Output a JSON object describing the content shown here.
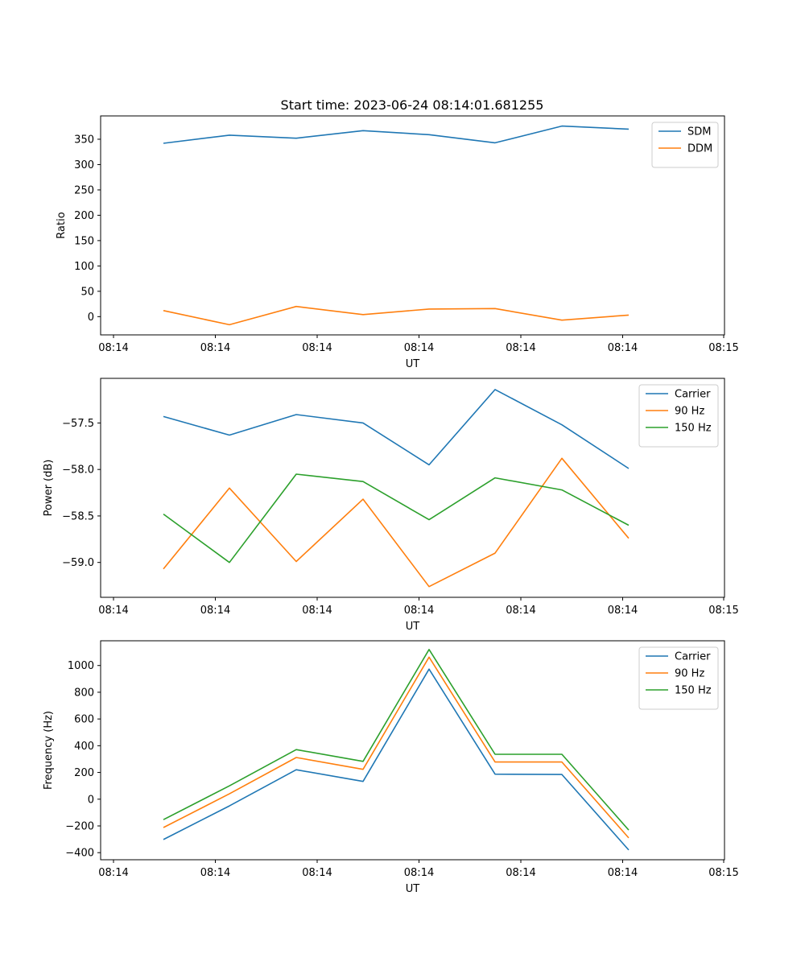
{
  "figure_title": "Start time: 2023-06-24 08:14:01.681255",
  "colors": {
    "blue": "#1f77b4",
    "orange": "#ff7f0e",
    "green": "#2ca02c"
  },
  "chart_data": [
    {
      "type": "line",
      "title": "Start time: 2023-06-24 08:14:01.681255",
      "xlabel": "UT",
      "ylabel": "Ratio",
      "x_tick_labels": [
        "08:14",
        "08:14",
        "08:14",
        "08:14",
        "08:14",
        "08:14",
        "08:14"
      ],
      "y_ticks": [
        0,
        50,
        100,
        150,
        200,
        250,
        300,
        350
      ],
      "y_tick_labels": [
        "0",
        "50",
        "100",
        "150",
        "200",
        "250",
        "300",
        "350"
      ],
      "ylim": [
        -36,
        396
      ],
      "grid": false,
      "legend_position": "top-right",
      "series": [
        {
          "name": "SDM",
          "color": "#1f77b4",
          "values": [
            342,
            358,
            352,
            367,
            359,
            343,
            376,
            370
          ]
        },
        {
          "name": "DDM",
          "color": "#ff7f0e",
          "values": [
            12,
            -16,
            20,
            4,
            15,
            16,
            -7,
            3
          ]
        }
      ]
    },
    {
      "type": "line",
      "xlabel": "UT",
      "ylabel": "Power (dB)",
      "x_tick_labels": [
        "08:14",
        "08:14",
        "08:14",
        "08:14",
        "08:14",
        "08:14",
        "08:14"
      ],
      "y_ticks": [
        -59.0,
        -58.5,
        -58.0,
        -57.5
      ],
      "y_tick_labels": [
        "−59.0",
        "−58.5",
        "−58.0",
        "−57.5"
      ],
      "ylim": [
        -59.375,
        -57.02
      ],
      "grid": false,
      "legend_position": "top-right",
      "series": [
        {
          "name": "Carrier",
          "color": "#1f77b4",
          "values": [
            -57.43,
            -57.63,
            -57.41,
            -57.5,
            -57.95,
            -57.14,
            -57.52,
            -57.99
          ]
        },
        {
          "name": "90 Hz",
          "color": "#ff7f0e",
          "values": [
            -59.07,
            -58.2,
            -58.99,
            -58.32,
            -59.26,
            -58.9,
            -57.88,
            -58.74
          ]
        },
        {
          "name": "150 Hz",
          "color": "#2ca02c",
          "values": [
            -58.48,
            -59.0,
            -58.05,
            -58.13,
            -58.54,
            -58.09,
            -58.22,
            -58.6
          ]
        }
      ]
    },
    {
      "type": "line",
      "xlabel": "UT",
      "ylabel": "Frequency (Hz)",
      "x_tick_labels": [
        "08:14",
        "08:14",
        "08:14",
        "08:14",
        "08:14",
        "08:14",
        "08:14",
        "08:15"
      ],
      "y_ticks": [
        -400,
        -200,
        0,
        200,
        400,
        600,
        800,
        1000
      ],
      "y_tick_labels": [
        "−400",
        "−200",
        "0",
        "200",
        "400",
        "600",
        "800",
        "1000"
      ],
      "ylim": [
        -453,
        1185
      ],
      "grid": false,
      "legend_position": "top-right",
      "series": [
        {
          "name": "Carrier",
          "color": "#1f77b4",
          "values": [
            -302,
            -50,
            220,
            133,
            973,
            187,
            185,
            -380
          ]
        },
        {
          "name": "90 Hz",
          "color": "#ff7f0e",
          "values": [
            -212,
            40,
            312,
            223,
            1063,
            278,
            278,
            -290
          ]
        },
        {
          "name": "150 Hz",
          "color": "#2ca02c",
          "values": [
            -153,
            100,
            371,
            283,
            1120,
            336,
            336,
            -231
          ]
        }
      ]
    }
  ],
  "x_edge_tick_labels": [
    "08:14",
    "08:15"
  ]
}
